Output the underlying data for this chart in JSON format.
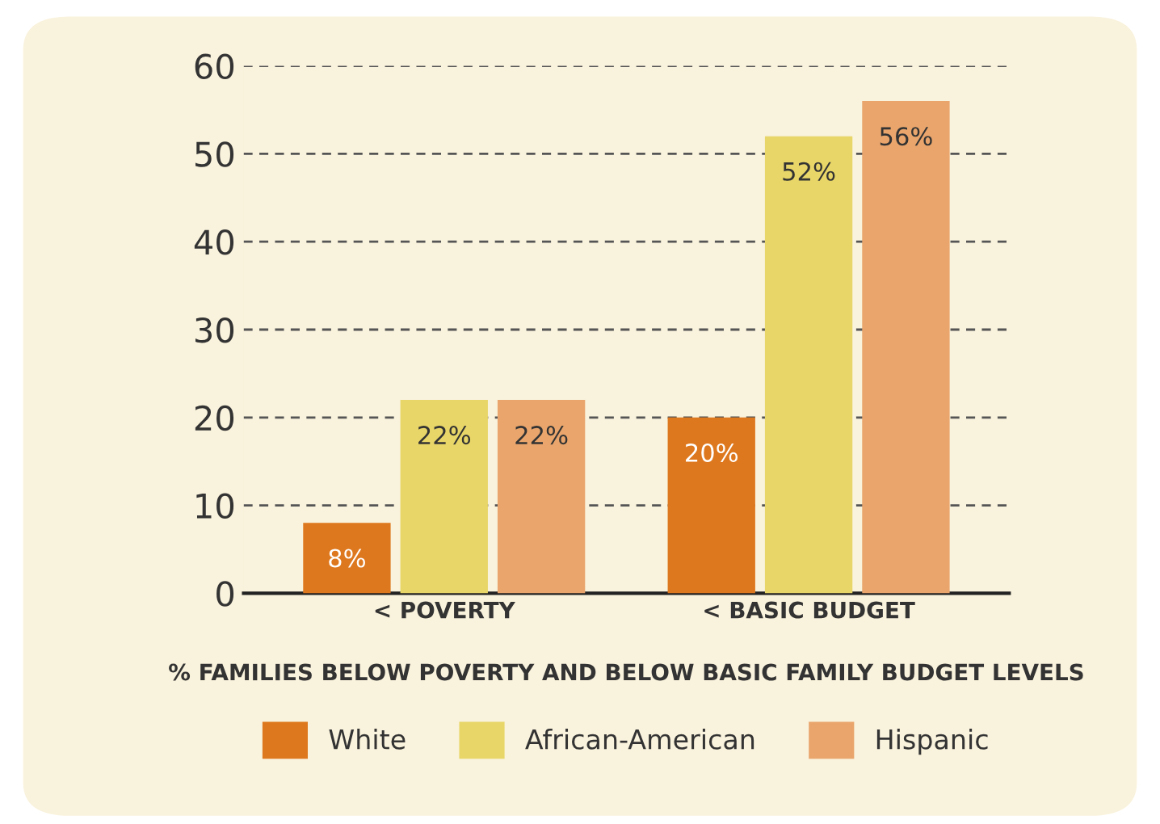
{
  "chart_data": {
    "type": "bar",
    "xlabel": "% FAMILIES BELOW POVERTY AND BELOW BASIC FAMILY BUDGET LEVELS",
    "categories": [
      "< POVERTY",
      "< BASIC BUDGET"
    ],
    "series": [
      {
        "name": "White",
        "color": "#de781e",
        "values": [
          8,
          20
        ],
        "value_labels": [
          "8%",
          "20%"
        ]
      },
      {
        "name": "African-American",
        "color": "#e8d668",
        "values": [
          22,
          52
        ],
        "value_labels": [
          "22%",
          "52%"
        ]
      },
      {
        "name": "Hispanic",
        "color": "#e9a56c",
        "values": [
          22,
          56
        ],
        "value_labels": [
          "22%",
          "56%"
        ]
      }
    ],
    "ylim": [
      0,
      60
    ],
    "yticks": [
      0,
      10,
      20,
      30,
      40,
      50,
      60
    ],
    "grid": "y",
    "legend": "bottom"
  }
}
